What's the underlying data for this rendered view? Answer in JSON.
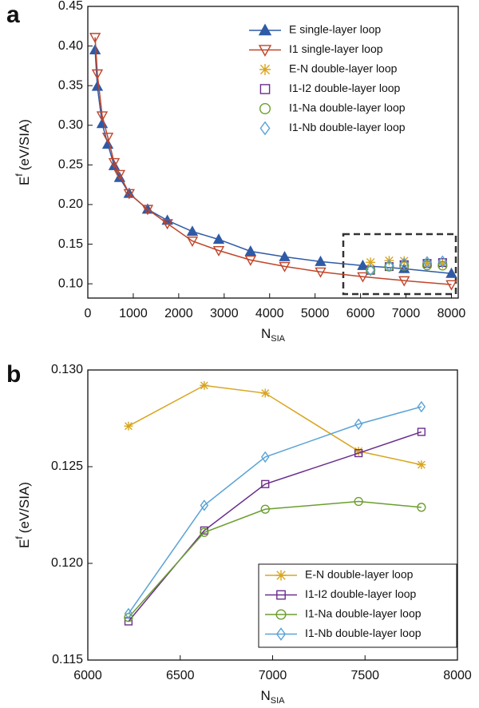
{
  "chart_data": [
    {
      "type": "line",
      "panel_label": "a",
      "ylabel_base": "E",
      "ylabel_sup": "f",
      "ylabel_unit": "(eV/SIA)",
      "xlabel_base": "N",
      "xlabel_sub": "SIA",
      "xlim": [
        0,
        8150
      ],
      "ylim": [
        0.082,
        0.45
      ],
      "xticks": [
        0,
        1000,
        2000,
        3000,
        4000,
        5000,
        6000,
        7000,
        8000
      ],
      "yticks": [
        {
          "value": 0.1,
          "label": "0.10"
        },
        0.15,
        {
          "value": 0.2,
          "label": "0.20"
        },
        0.25,
        {
          "value": 0.3,
          "label": "0.30"
        },
        0.35,
        {
          "value": 0.4,
          "label": "0.40"
        },
        0.45
      ],
      "series": [
        {
          "name": "E single-layer loop",
          "color": "#2f5aa6",
          "marker": "triangle-up",
          "filled": true,
          "line": true,
          "x": [
            160,
            210,
            316,
            440,
            580,
            700,
            910,
            1316,
            1750,
            2300,
            2880,
            3580,
            4330,
            5120,
            6050,
            6960,
            8000
          ],
          "values": [
            0.395,
            0.349,
            0.302,
            0.276,
            0.249,
            0.234,
            0.214,
            0.194,
            0.18,
            0.166,
            0.156,
            0.141,
            0.134,
            0.128,
            0.123,
            0.119,
            0.113
          ]
        },
        {
          "name": "I1 single-layer loop",
          "color": "#c0452a",
          "marker": "triangle-down",
          "filled": false,
          "line": true,
          "x": [
            160,
            210,
            316,
            440,
            580,
            700,
            910,
            1316,
            1750,
            2300,
            2880,
            3580,
            4330,
            5120,
            6050,
            6960,
            8000
          ],
          "values": [
            0.411,
            0.365,
            0.312,
            0.285,
            0.253,
            0.238,
            0.214,
            0.194,
            0.176,
            0.154,
            0.142,
            0.13,
            0.122,
            0.115,
            0.109,
            0.104,
            0.099
          ]
        },
        {
          "name": "E-N double-layer loop",
          "color": "#d9a520",
          "marker": "star",
          "filled": false,
          "line": false,
          "x": [
            6220,
            6630,
            6960,
            7465,
            7805
          ],
          "values": [
            0.1271,
            0.1292,
            0.1288,
            0.1258,
            0.1251
          ]
        },
        {
          "name": "I1-I2 double-layer loop",
          "color": "#6a2d8c",
          "marker": "square",
          "filled": false,
          "line": false,
          "x": [
            6220,
            6630,
            6960,
            7465,
            7805
          ],
          "values": [
            0.117,
            0.1217,
            0.1241,
            0.1257,
            0.1268
          ]
        },
        {
          "name": "I1-Na double-layer loop",
          "color": "#6b9e2e",
          "marker": "circle",
          "filled": false,
          "line": false,
          "x": [
            6220,
            6630,
            6960,
            7465,
            7805
          ],
          "values": [
            0.1172,
            0.1216,
            0.1228,
            0.1232,
            0.1229
          ]
        },
        {
          "name": "I1-Nb double-layer loop",
          "color": "#5aa2d6",
          "marker": "diamond",
          "filled": false,
          "line": false,
          "x": [
            6220,
            6630,
            6960,
            7465,
            7805
          ],
          "values": [
            0.1174,
            0.123,
            0.1255,
            0.1272,
            0.1281
          ]
        }
      ]
    },
    {
      "type": "line",
      "panel_label": "b",
      "ylabel_base": "E",
      "ylabel_sup": "f",
      "ylabel_unit": "(eV/SIA)",
      "xlabel_base": "N",
      "xlabel_sub": "SIA",
      "xlim": [
        6000,
        8000
      ],
      "ylim": [
        0.115,
        0.13
      ],
      "xticks": [
        6000,
        6500,
        7000,
        7500,
        8000
      ],
      "yticks": [
        0.115,
        {
          "value": 0.12,
          "label": "0.120"
        },
        0.125,
        {
          "value": 0.13,
          "label": "0.130"
        }
      ],
      "series": [
        {
          "name": "E-N double-layer loop",
          "color": "#d9a520",
          "marker": "star",
          "filled": false,
          "line": true,
          "x": [
            6220,
            6630,
            6960,
            7465,
            7805
          ],
          "values": [
            0.1271,
            0.1292,
            0.1288,
            0.1258,
            0.1251
          ]
        },
        {
          "name": "I1-I2 double-layer loop",
          "color": "#6a2d8c",
          "marker": "square",
          "filled": false,
          "line": true,
          "x": [
            6220,
            6630,
            6960,
            7465,
            7805
          ],
          "values": [
            0.117,
            0.1217,
            0.1241,
            0.1257,
            0.1268
          ]
        },
        {
          "name": "I1-Na double-layer loop",
          "color": "#6b9e2e",
          "marker": "circle",
          "filled": false,
          "line": true,
          "x": [
            6220,
            6630,
            6960,
            7465,
            7805
          ],
          "values": [
            0.1172,
            0.1216,
            0.1228,
            0.1232,
            0.1229
          ]
        },
        {
          "name": "I1-Nb double-layer loop",
          "color": "#5aa2d6",
          "marker": "diamond",
          "filled": false,
          "line": true,
          "x": [
            6220,
            6630,
            6960,
            7465,
            7805
          ],
          "values": [
            0.1174,
            0.123,
            0.1255,
            0.1272,
            0.1281
          ]
        }
      ]
    }
  ]
}
